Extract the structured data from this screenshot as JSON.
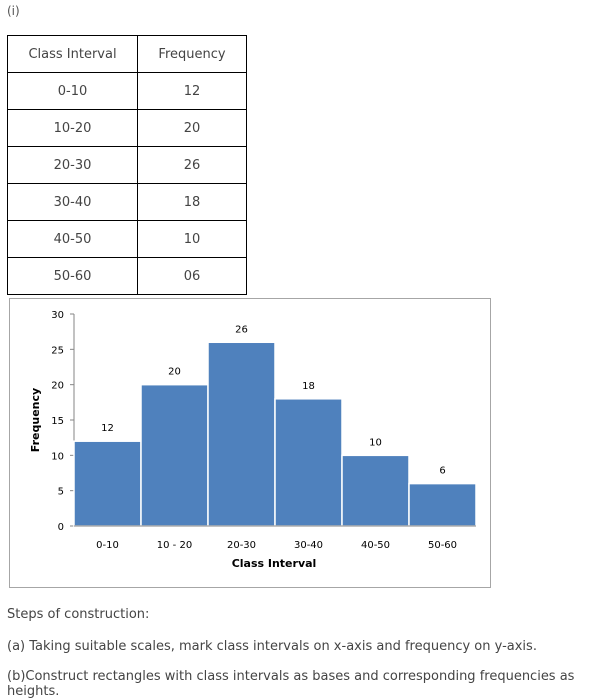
{
  "part_label": "(i)",
  "table": {
    "headers": [
      "Class Interval",
      "Frequency"
    ],
    "rows": [
      [
        "0-10",
        "12"
      ],
      [
        "10-20",
        "20"
      ],
      [
        "20-30",
        "26"
      ],
      [
        "30-40",
        "18"
      ],
      [
        "40-50",
        "10"
      ],
      [
        "50-60",
        "06"
      ]
    ]
  },
  "chart_data": {
    "type": "bar",
    "categories": [
      "0-10",
      "10 - 20",
      "20-30",
      "30-40",
      "40-50",
      "50-60"
    ],
    "values": [
      12,
      20,
      26,
      18,
      10,
      6
    ],
    "data_labels": [
      "12",
      "20",
      "26",
      "18",
      "10",
      "6"
    ],
    "xlabel": "Class Interval",
    "ylabel": "Frequency",
    "ylim": [
      0,
      30
    ],
    "yticks": [
      0,
      5,
      10,
      15,
      20,
      25,
      30
    ],
    "grid": false,
    "bar_color": "#4f81bd",
    "bar_edge_color": "#ffffff"
  },
  "steps": {
    "heading": "Steps of construction:",
    "items": [
      "(a) Taking suitable scales, mark class intervals on x-axis and frequency on y-axis.",
      "(b)Construct rectangles with class intervals as bases and corresponding frequencies as heights."
    ]
  }
}
